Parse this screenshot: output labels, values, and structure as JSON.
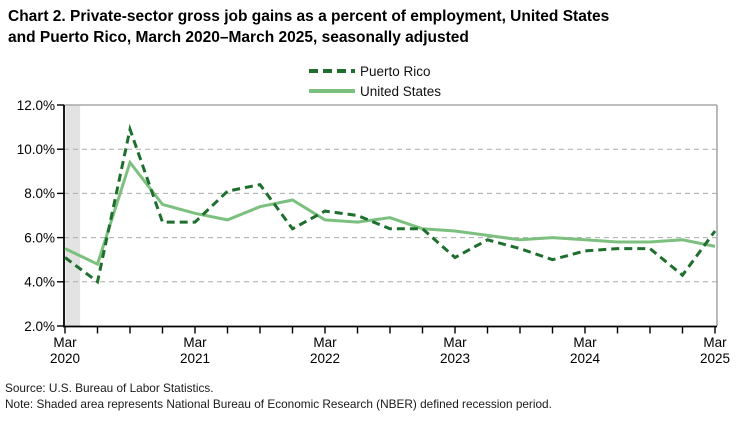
{
  "title": {
    "line1": "Chart 2. Private-sector gross job gains as a percent of employment, United States",
    "line2": "and Puerto Rico, March 2020–March 2025, seasonally adjusted"
  },
  "legend": {
    "items": [
      {
        "label": "Puerto Rico",
        "style": "dashed",
        "color": "#1e6e2d"
      },
      {
        "label": "United States",
        "style": "solid",
        "color": "#7cc07f"
      }
    ]
  },
  "chart_data": {
    "type": "line",
    "x": [
      "Mar 2020",
      "Jun 2020",
      "Sep 2020",
      "Dec 2020",
      "Mar 2021",
      "Jun 2021",
      "Sep 2021",
      "Dec 2021",
      "Mar 2022",
      "Jun 2022",
      "Sep 2022",
      "Dec 2022",
      "Mar 2023",
      "Jun 2023",
      "Sep 2023",
      "Dec 2023",
      "Mar 2024",
      "Jun 2024",
      "Sep 2024",
      "Dec 2024",
      "Mar 2025"
    ],
    "series": [
      {
        "name": "United States",
        "style": "solid",
        "color": "#7cc07f",
        "values": [
          5.5,
          4.8,
          9.4,
          7.5,
          7.1,
          6.8,
          7.4,
          7.7,
          6.8,
          6.7,
          6.9,
          6.4,
          6.3,
          6.1,
          5.9,
          6.0,
          5.9,
          5.8,
          5.8,
          5.9,
          5.6
        ]
      },
      {
        "name": "Puerto Rico",
        "style": "dashed",
        "color": "#1e6e2d",
        "values": [
          5.1,
          4.0,
          10.9,
          6.7,
          6.7,
          8.1,
          8.4,
          6.4,
          7.2,
          7.0,
          6.4,
          6.4,
          5.1,
          5.9,
          5.5,
          5.0,
          5.4,
          5.5,
          5.5,
          4.3,
          6.3
        ]
      }
    ],
    "ylabel": "",
    "xlabel": "",
    "ylim": [
      2,
      12
    ],
    "yticks": [
      {
        "v": 12,
        "label": "12.0%"
      },
      {
        "v": 10,
        "label": "10.0%"
      },
      {
        "v": 8,
        "label": "8.0%"
      },
      {
        "v": 6,
        "label": "6.0%"
      },
      {
        "v": 4,
        "label": "4.0%"
      },
      {
        "v": 2,
        "label": "2.0%"
      }
    ],
    "gridline_values": [
      10,
      8,
      6,
      4
    ],
    "x_labeled_ticks": [
      {
        "i": 0,
        "month": "Mar",
        "year": "2020"
      },
      {
        "i": 4,
        "month": "Mar",
        "year": "2021"
      },
      {
        "i": 8,
        "month": "Mar",
        "year": "2022"
      },
      {
        "i": 12,
        "month": "Mar",
        "year": "2023"
      },
      {
        "i": 16,
        "month": "Mar",
        "year": "2024"
      },
      {
        "i": 20,
        "month": "Mar",
        "year": "2025"
      }
    ],
    "recession_band": {
      "from": "Mar 2020",
      "to": "Apr 2020",
      "from_index": 0,
      "to_index": 0.45,
      "color": "#e3e3e3"
    },
    "grid": "dashed-horizontal",
    "legend_position": "top-center"
  },
  "footer": {
    "source": "Source: U.S. Bureau of Labor Statistics.",
    "note": "Note: Shaded area represents National Bureau of Economic Research (NBER) defined recession period."
  }
}
